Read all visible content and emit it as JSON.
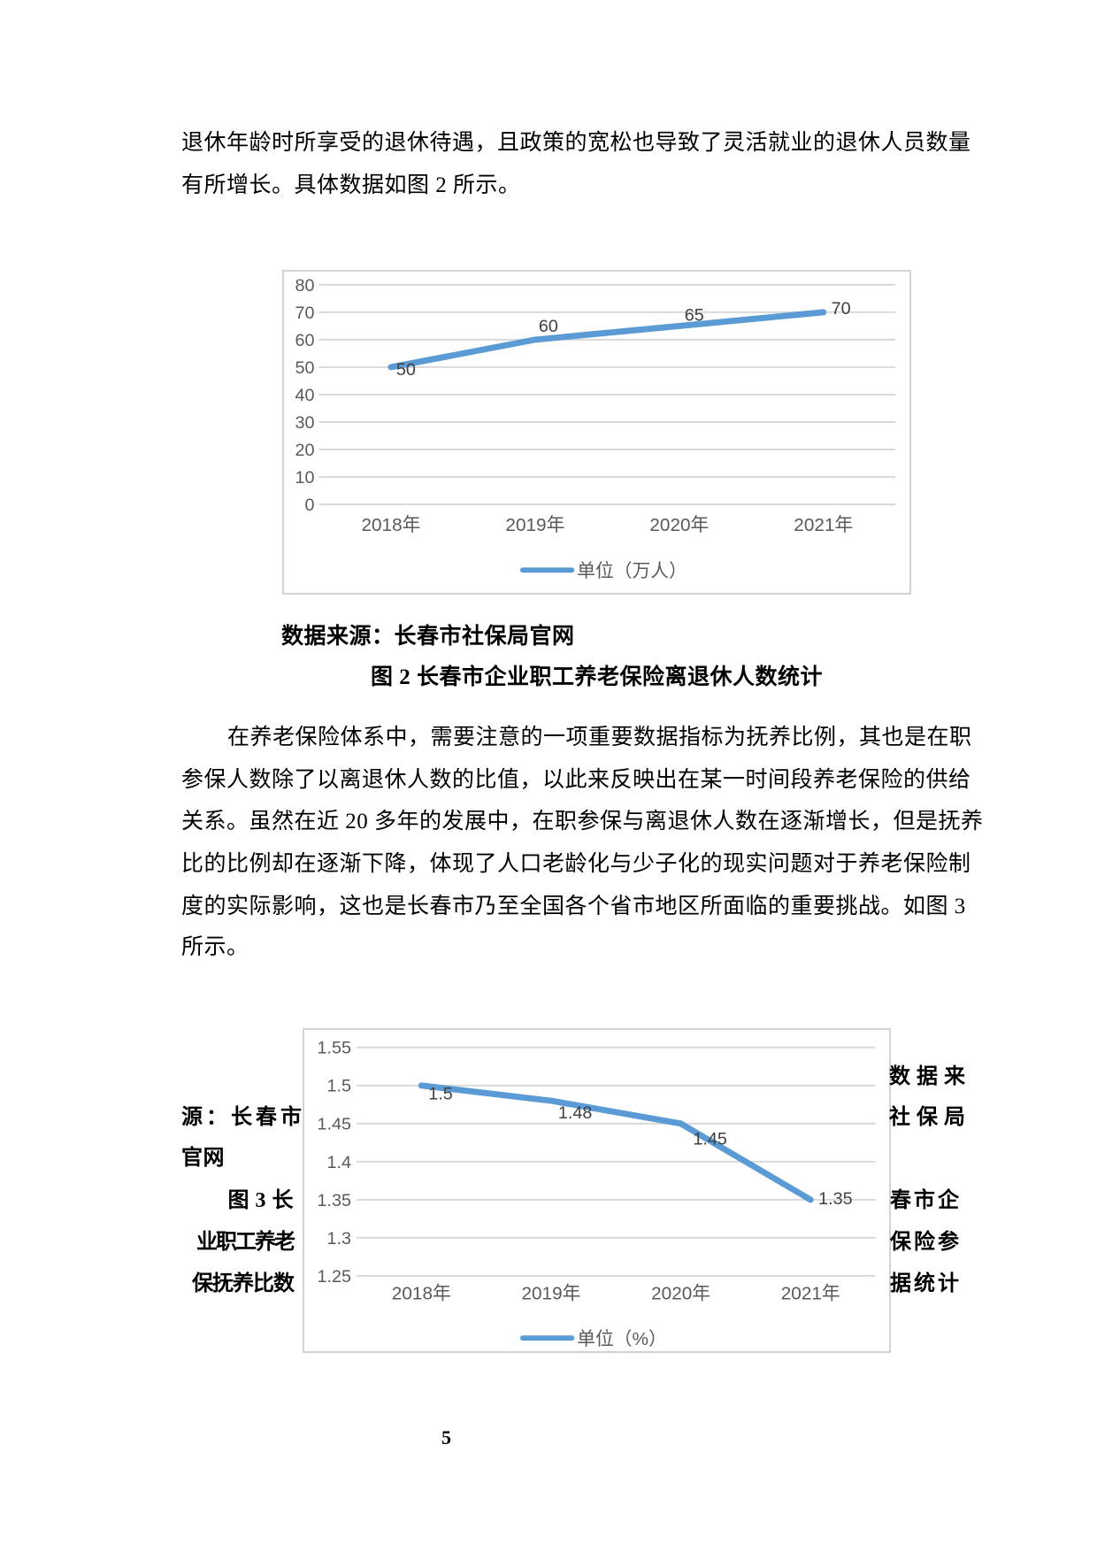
{
  "page": {
    "number": "5"
  },
  "colors": {
    "line_blue": "#5b9bd5",
    "grid_gray": "#d9d9d9",
    "axis_text": "#595959",
    "data_label": "#404040",
    "frame_border": "#d3d3d3"
  },
  "paragraph1": {
    "lines": [
      "退休年龄时所享受的退休待遇，且政策的宽松也导致了灵活就业的退休人员数量",
      "有所增长。具体数据如图 2 所示。"
    ]
  },
  "figure2": {
    "source_note": "数据来源：长春市社保局官网",
    "caption": "图 2 长春市企业职工养老保险离退休人数统计"
  },
  "paragraph2": {
    "lines": [
      "在养老保险体系中，需要注意的一项重要数据指标为抚养比例，其也是在职",
      "参保人数除了以离退休人数的比值，以此来反映出在某一时间段养老保险的供给",
      "关系。虽然在近 20 多年的发展中，在职参保与离退休人数在逐渐增长，但是抚养",
      "比的比例却在逐渐下降，体现了人口老龄化与少子化的现实问题对于养老保险制",
      "度的实际影响，这也是长春市乃至全国各个省市地区所面临的重要挑战。如图 3",
      "所示。"
    ]
  },
  "figure3": {
    "source_note_full": "数据来源：长春市社保局官网",
    "caption_full": "图 3 长春市企业职工养老保险参保抚养比数据统计",
    "wrap": {
      "right_line1": "数 据 来",
      "left_line2": "源：长春市",
      "right_line2": "社 保 局",
      "left_line3": "官网",
      "left_line4": "图 3 长",
      "right_line4": "春市企",
      "left_line5": "业职工养老",
      "right_line5": "保险参",
      "left_line6": "保抚养比数",
      "right_line6": "据统计"
    }
  },
  "chart_data": [
    {
      "type": "line",
      "title": "",
      "categories": [
        "2018年",
        "2019年",
        "2020年",
        "2021年"
      ],
      "values": [
        50,
        60,
        65,
        70
      ],
      "data_labels": [
        "50",
        "60",
        "65",
        "70"
      ],
      "legend": "单位（万人）",
      "legend_position": "bottom",
      "xlabel": "",
      "ylabel": "",
      "ylim": [
        0,
        80
      ],
      "ytick_interval": 10,
      "ytick_labels": [
        "0",
        "10",
        "20",
        "30",
        "40",
        "50",
        "60",
        "70",
        "80"
      ],
      "grid": true,
      "line_color": "#5b9bd5"
    },
    {
      "type": "line",
      "title": "",
      "categories": [
        "2018年",
        "2019年",
        "2020年",
        "2021年"
      ],
      "values": [
        1.5,
        1.48,
        1.45,
        1.35
      ],
      "data_labels": [
        "1.5",
        "1.48",
        "1.45",
        "1.35"
      ],
      "legend": "单位（%）",
      "legend_position": "bottom",
      "xlabel": "",
      "ylabel": "",
      "ylim": [
        1.25,
        1.55
      ],
      "ytick_interval": 0.05,
      "ytick_labels": [
        "1.25",
        "1.3",
        "1.35",
        "1.4",
        "1.45",
        "1.5",
        "1.55"
      ],
      "grid": true,
      "line_color": "#5b9bd5"
    }
  ]
}
